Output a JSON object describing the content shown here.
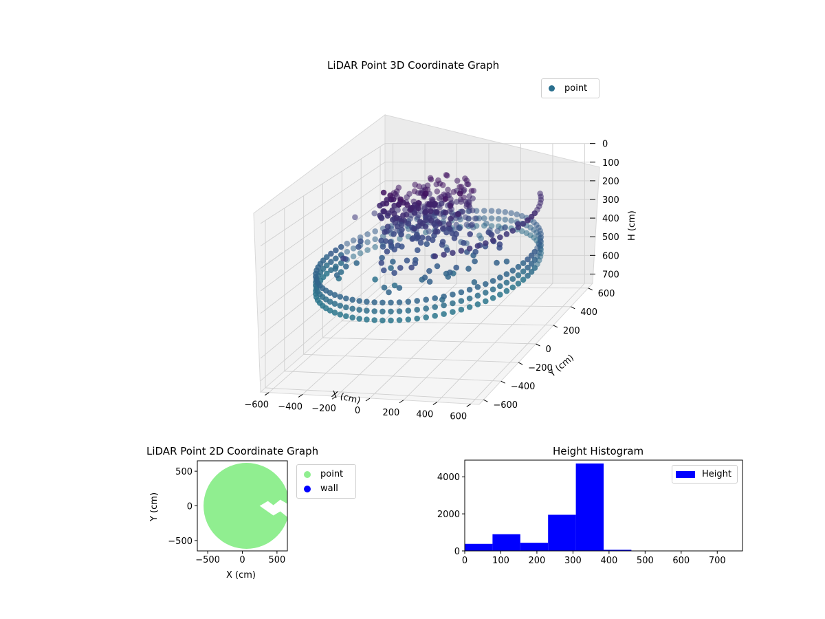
{
  "chart_data": [
    {
      "type": "scatter3d",
      "title": "LiDAR Point 3D Coordinate Graph",
      "xlabel": "X (cm)",
      "ylabel": "Y (cm)",
      "zlabel": "H (cm)",
      "xlim": [
        -650,
        650
      ],
      "ylim": [
        -650,
        650
      ],
      "zlim": [
        0,
        750
      ],
      "z_inverted": true,
      "xticks": [
        -600,
        -400,
        -200,
        0,
        200,
        400,
        600
      ],
      "yticks": [
        -600,
        -400,
        -200,
        0,
        200,
        400,
        600
      ],
      "zticks": [
        0,
        100,
        200,
        300,
        400,
        500,
        600,
        700
      ],
      "legend": {
        "position": "top-right",
        "entries": [
          "point"
        ]
      },
      "series": [
        {
          "name": "point",
          "color": "#2a6f8e",
          "colormap": "viridis",
          "shape": "ring of points around radius ~600 at heights 350-420, with dense cluster near center at lower H",
          "ring_radius": 600,
          "ring_height_range": [
            340,
            420
          ]
        }
      ],
      "grid": true
    },
    {
      "type": "scatter",
      "title": "LiDAR Point 2D Coordinate Graph",
      "xlabel": "X (cm)",
      "ylabel": "Y (cm)",
      "xlim": [
        -650,
        650
      ],
      "ylim": [
        -650,
        650
      ],
      "xticks": [
        -500,
        0,
        500
      ],
      "yticks": [
        -500,
        0,
        500
      ],
      "legend": {
        "position": "outside-right",
        "entries": [
          "point",
          "wall"
        ]
      },
      "series": [
        {
          "name": "point",
          "color": "#90ee90",
          "radius": 620
        },
        {
          "name": "wall",
          "color": "#0000ff"
        }
      ]
    },
    {
      "type": "bar",
      "title": "Height Histogram",
      "legend": {
        "position": "top-right",
        "entries": [
          "Height"
        ]
      },
      "color": "#0000ff",
      "xlim": [
        0,
        770
      ],
      "ylim": [
        0,
        4900
      ],
      "xticks": [
        0,
        100,
        200,
        300,
        400,
        500,
        600,
        700
      ],
      "yticks": [
        0,
        2000,
        4000
      ],
      "bin_edges": [
        0,
        77,
        154,
        231,
        308,
        385,
        462,
        539,
        616,
        693,
        770
      ],
      "values": [
        380,
        900,
        440,
        1950,
        4720,
        60,
        5,
        3,
        2,
        2
      ],
      "series": [
        {
          "name": "Height"
        }
      ]
    }
  ]
}
